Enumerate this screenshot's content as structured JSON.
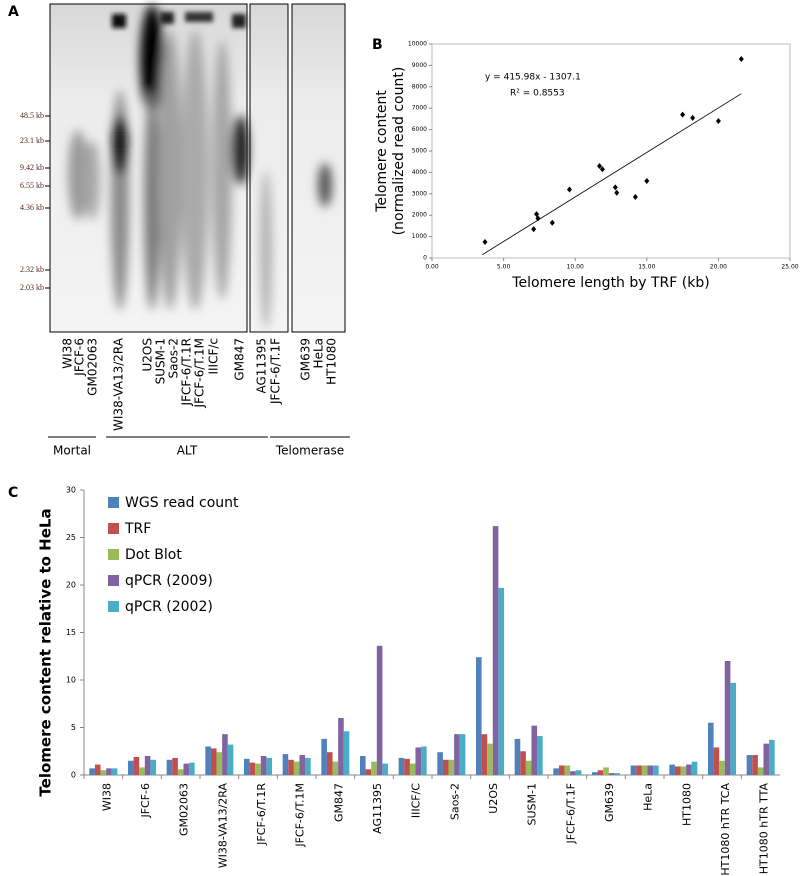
{
  "panel_labels": [
    "A",
    "B",
    "C"
  ],
  "gel": {
    "size_markers": [
      "48.5 kb",
      "23.1 kb",
      "9.42 kb",
      "6.55 kb",
      "4.36 kb",
      "2.32 kb",
      "2.03 kb"
    ],
    "lanes": [
      "WI38",
      "JFCF-6",
      "GM02063",
      "WI38-VA13/2RA",
      "U2OS",
      "SUSM-1",
      "Saos-2",
      "JFCF-6/T.1R",
      "JFCF-6/T.1M",
      "IIICF/c",
      "GM847",
      "AG11395",
      "JFCF-6/T.1F",
      "GM639",
      "HeLa",
      "HT1080"
    ],
    "groups": [
      "Mortal",
      "ALT",
      "Telomerase"
    ]
  },
  "chart_data": [
    {
      "type": "scatter",
      "x_label": "Telomere length by TRF (kb)",
      "y_label": [
        "Telomere content",
        "(normalized read count)"
      ],
      "annotations": [
        "y = 415.98x - 1307.1",
        "R² = 0.8553"
      ],
      "x": [
        3.7,
        7.1,
        7.3,
        7.4,
        8.4,
        9.6,
        11.7,
        11.9,
        12.8,
        12.9,
        14.2,
        15.0,
        17.5,
        18.2,
        20.0,
        21.6
      ],
      "values": [
        750,
        1350,
        2050,
        1850,
        1650,
        3200,
        4300,
        4150,
        3300,
        3050,
        2850,
        3600,
        6700,
        6550,
        6400,
        9300
      ],
      "color": "#000000",
      "trendline": {
        "x": [
          3.5,
          21.6
        ],
        "y": [
          149,
          7678
        ]
      },
      "xlim": [
        0,
        25
      ],
      "xticks": [
        {
          "value": 0,
          "label": "0.00"
        },
        {
          "value": 5,
          "label": "5.00"
        },
        {
          "value": 10,
          "label": "10.00"
        },
        {
          "value": 15,
          "label": "15.00"
        },
        {
          "value": 20,
          "label": "20.00"
        },
        {
          "value": 25,
          "label": "25.00"
        }
      ],
      "ylim": [
        0,
        10000
      ],
      "yticks": [
        0,
        1000,
        2000,
        3000,
        4000,
        5000,
        6000,
        7000,
        8000,
        9000,
        10000
      ]
    },
    {
      "type": "bar",
      "y_label": "Telomere content relative to HeLa",
      "categories": [
        "WI38",
        "JFCF-6",
        "GM02063",
        "WI38-VA13/2RA",
        "JFCF-6/T.1R",
        "JFCF-6/T.1M",
        "GM847",
        "AG11395",
        "IIICF/C",
        "Saos-2",
        "U2OS",
        "SUSM-1",
        "JFCF-6/T.1F",
        "GM639",
        "HeLa",
        "HT1080",
        "HT1080 hTR TCA",
        "HT1080 hTR TTA"
      ],
      "series": [
        {
          "name": "WGS read count",
          "color": "#4f81bd",
          "values": [
            0.7,
            1.5,
            1.6,
            3.0,
            1.7,
            2.2,
            3.8,
            2.0,
            1.8,
            2.4,
            12.4,
            3.8,
            0.7,
            0.3,
            1.0,
            1.1,
            5.5,
            2.1
          ]
        },
        {
          "name": "TRF",
          "color": "#c0504d",
          "values": [
            1.1,
            1.9,
            1.8,
            2.8,
            1.3,
            1.6,
            2.4,
            0.6,
            1.7,
            1.6,
            4.3,
            2.5,
            1.0,
            0.5,
            1.0,
            0.9,
            2.9,
            2.1
          ]
        },
        {
          "name": "Dot Blot",
          "color": "#9bbb59",
          "values": [
            0.5,
            0.8,
            0.6,
            2.4,
            1.2,
            1.4,
            1.4,
            1.4,
            1.2,
            1.6,
            3.3,
            1.5,
            1.0,
            0.8,
            1.0,
            0.9,
            1.5,
            0.8
          ]
        },
        {
          "name": "qPCR (2009)",
          "color": "#8064a2",
          "values": [
            0.7,
            2.0,
            1.2,
            4.3,
            2.0,
            2.1,
            6.0,
            13.6,
            2.9,
            4.3,
            26.2,
            5.2,
            0.4,
            0.2,
            1.0,
            1.1,
            12.0,
            3.3
          ]
        },
        {
          "name": "qPCR (2002)",
          "color": "#4bacc6",
          "values": [
            0.7,
            1.6,
            1.3,
            3.2,
            1.8,
            1.8,
            4.6,
            1.2,
            3.0,
            4.3,
            19.7,
            4.1,
            0.5,
            0.2,
            1.0,
            1.4,
            9.7,
            3.7
          ]
        }
      ],
      "ylim": [
        0,
        30
      ],
      "yticks": [
        0,
        5,
        10,
        15,
        20,
        25,
        30
      ]
    }
  ]
}
